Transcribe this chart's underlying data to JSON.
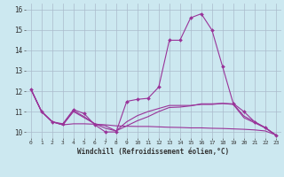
{
  "xlabel": "Windchill (Refroidissement éolien,°C)",
  "bg_color": "#cce8f0",
  "line_color": "#993399",
  "grid_color": "#aabbcc",
  "xlim": [
    -0.5,
    23.5
  ],
  "ylim": [
    9.7,
    16.3
  ],
  "yticks": [
    10,
    11,
    12,
    13,
    14,
    15,
    16
  ],
  "xticks": [
    0,
    1,
    2,
    3,
    4,
    5,
    6,
    7,
    8,
    9,
    10,
    11,
    12,
    13,
    14,
    15,
    16,
    17,
    18,
    19,
    20,
    21,
    22,
    23
  ],
  "lines": [
    {
      "x": [
        0,
        1,
        2,
        3,
        4,
        5,
        6,
        7,
        8,
        9,
        10,
        11,
        12,
        13,
        14,
        15,
        16,
        17,
        18,
        19,
        20,
        21,
        22,
        23
      ],
      "y": [
        12.1,
        11.0,
        10.5,
        10.4,
        11.1,
        10.9,
        10.35,
        10.0,
        10.0,
        11.5,
        11.6,
        11.65,
        12.2,
        14.5,
        14.5,
        15.6,
        15.8,
        15.0,
        13.2,
        11.4,
        11.0,
        10.5,
        10.2,
        9.85
      ],
      "markers": true
    },
    {
      "x": [
        0,
        1,
        2,
        3,
        4,
        5,
        6,
        7,
        8,
        9,
        10,
        11,
        12,
        13,
        14,
        15,
        16,
        17,
        18,
        19,
        20,
        21,
        22,
        23
      ],
      "y": [
        12.1,
        11.0,
        10.5,
        10.35,
        11.0,
        10.7,
        10.4,
        10.3,
        10.05,
        10.5,
        10.8,
        11.0,
        11.15,
        11.3,
        11.3,
        11.3,
        11.35,
        11.35,
        11.4,
        11.35,
        10.7,
        10.45,
        10.2,
        9.85
      ],
      "markers": false
    },
    {
      "x": [
        0,
        1,
        2,
        3,
        4,
        5,
        6,
        7,
        8,
        9,
        10,
        11,
        12,
        13,
        14,
        15,
        16,
        17,
        18,
        19,
        20,
        21,
        22,
        23
      ],
      "y": [
        12.1,
        11.0,
        10.5,
        10.35,
        10.4,
        10.4,
        10.38,
        10.35,
        10.3,
        10.28,
        10.27,
        10.27,
        10.25,
        10.23,
        10.22,
        10.2,
        10.2,
        10.18,
        10.17,
        10.15,
        10.13,
        10.1,
        10.05,
        9.85
      ],
      "markers": false
    },
    {
      "x": [
        0,
        1,
        2,
        3,
        4,
        5,
        6,
        7,
        8,
        9,
        10,
        11,
        12,
        13,
        14,
        15,
        16,
        17,
        18,
        19,
        20,
        21,
        22,
        23
      ],
      "y": [
        12.1,
        11.0,
        10.5,
        10.35,
        11.05,
        10.75,
        10.4,
        10.18,
        10.05,
        10.3,
        10.55,
        10.75,
        11.0,
        11.2,
        11.22,
        11.28,
        11.38,
        11.38,
        11.4,
        11.38,
        10.78,
        10.5,
        10.22,
        9.85
      ],
      "markers": false
    }
  ]
}
